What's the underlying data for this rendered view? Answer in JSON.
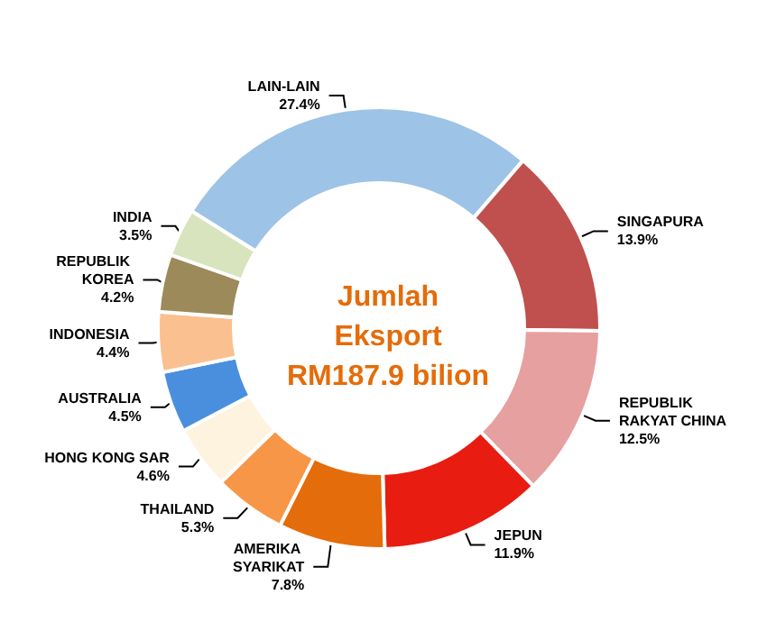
{
  "chart_data": {
    "type": "donut",
    "title": "Jumlah Eksport RM187.9 bilion",
    "categories": [
      "LAIN-LAIN",
      "SINGAPURA",
      "REPUBLIK RAKYAT CHINA",
      "JEPUN",
      "AMERIKA SYARIKAT",
      "THAILAND",
      "HONG KONG SAR",
      "AUSTRALIA",
      "INDONESIA",
      "REPUBLIK KOREA",
      "INDIA"
    ],
    "values": [
      27.4,
      13.9,
      12.5,
      11.9,
      7.8,
      5.3,
      4.6,
      4.5,
      4.4,
      4.2,
      3.5
    ],
    "colors": [
      "#9dc3e6",
      "#c0504d",
      "#e6a0a0",
      "#e81c10",
      "#e46c0a",
      "#f79646",
      "#fdf3df",
      "#4a8ede",
      "#fac090",
      "#9c8a5a",
      "#d7e4bd"
    ],
    "value_labels": [
      "27.4%",
      "13.9%",
      "12.5%",
      "11.9%",
      "7.8%",
      "5.3%",
      "4.6%",
      "4.5%",
      "4.4%",
      "4.2%",
      "3.5%"
    ],
    "legend": false
  }
}
